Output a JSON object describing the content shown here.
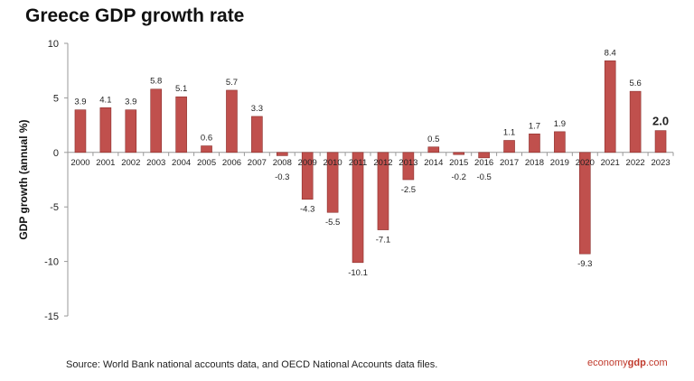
{
  "chart_data": {
    "type": "bar",
    "title": "Greece GDP growth rate",
    "ylabel": "GDP growth (annual %)",
    "xlabel": "",
    "ylim": [
      -15,
      10
    ],
    "yticks": [
      10,
      5,
      0,
      -5,
      -10,
      -15
    ],
    "grid": false,
    "bar_color": "#c0504d",
    "categories": [
      "2000",
      "2001",
      "2002",
      "2003",
      "2004",
      "2005",
      "2006",
      "2007",
      "2008",
      "2009",
      "2010",
      "2011",
      "2012",
      "2013",
      "2014",
      "2015",
      "2016",
      "2017",
      "2018",
      "2019",
      "2020",
      "2021",
      "2022",
      "2023"
    ],
    "values": [
      3.9,
      4.1,
      3.9,
      5.8,
      5.1,
      0.6,
      5.7,
      3.3,
      -0.3,
      -4.3,
      -5.5,
      -10.1,
      -7.1,
      -2.5,
      0.5,
      -0.2,
      -0.5,
      1.1,
      1.7,
      1.9,
      -9.3,
      8.4,
      5.6,
      2.0
    ],
    "labels": [
      "3.9",
      "4.1",
      "3.9",
      "5.8",
      "5.1",
      "0.6",
      "5.7",
      "3.3",
      "-0.3",
      "-4.3",
      "-5.5",
      "-10.1",
      "-7.1",
      "-2.5",
      "0.5",
      "-0.2",
      "-0.5",
      "1.1",
      "1.7",
      "1.9",
      "-9.3",
      "8.4",
      "5.6",
      "2.0"
    ]
  },
  "source": "Source:  World Bank national accounts data, and OECD National Accounts data files.",
  "brand": {
    "part1": "economy",
    "part2": "gdp",
    "part3": ".com"
  }
}
